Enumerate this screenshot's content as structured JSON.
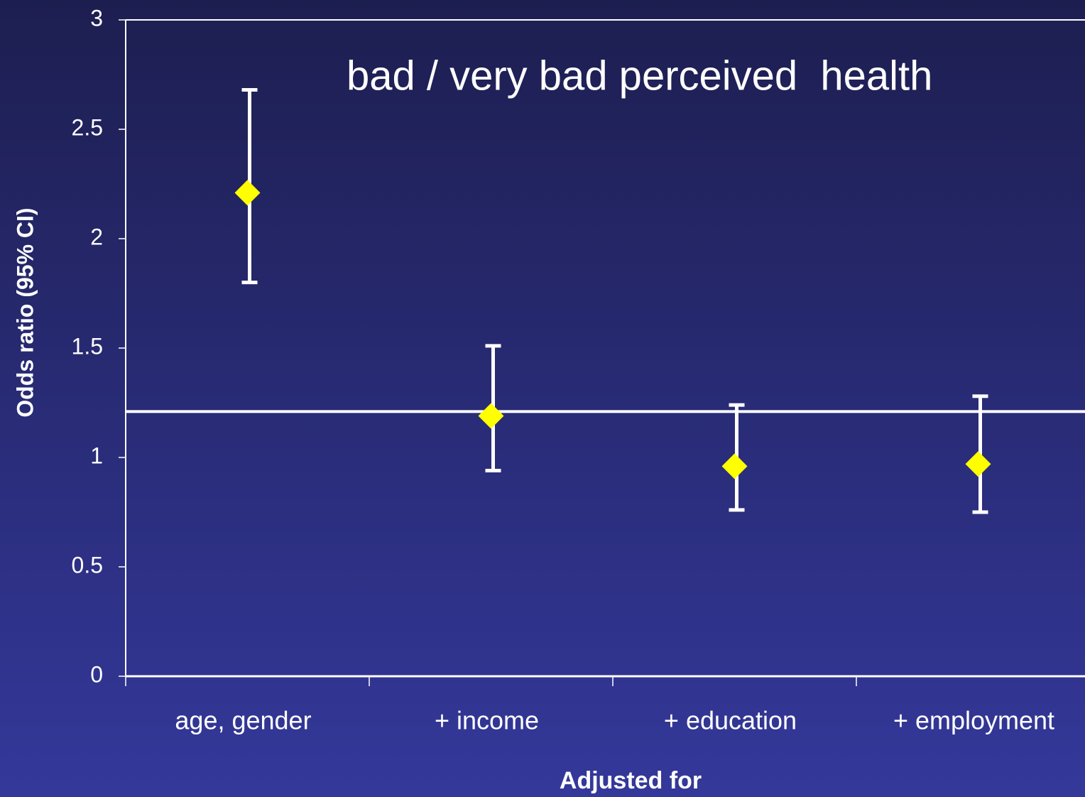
{
  "chart_data": {
    "type": "errorbar",
    "title": "bad / very bad perceived  health",
    "xlabel": "Adjusted for",
    "ylabel": "Odds ratio (95% CI)",
    "categories": [
      "age, gender",
      "+ income",
      "+ education",
      "+ employment"
    ],
    "values": [
      2.21,
      1.19,
      0.96,
      0.97
    ],
    "lower": [
      1.8,
      0.94,
      0.76,
      0.75
    ],
    "upper": [
      2.68,
      1.51,
      1.24,
      1.28
    ],
    "color": "#ffff00",
    "errorbar_color": "#ffffff",
    "reference_line": 1.21,
    "ylim": [
      0,
      3
    ],
    "yticks": [
      0,
      0.5,
      1,
      1.5,
      2,
      2.5,
      3
    ],
    "grid": false
  }
}
